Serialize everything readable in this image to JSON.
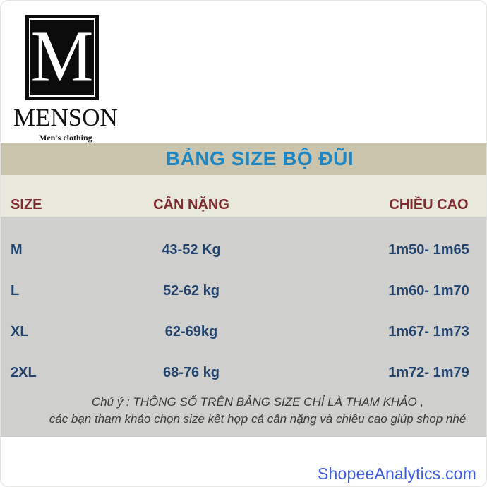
{
  "brand": {
    "monogram": "M",
    "name": "MENSON",
    "tagline": "Men's clothing"
  },
  "banner": {
    "title": "BẢNG SIZE BỘ ĐŨI"
  },
  "size_table": {
    "columns": [
      "SIZE",
      "CÂN NẶNG",
      "CHIỀU CAO"
    ],
    "rows": [
      {
        "size": "M",
        "weight": "43-52 Kg",
        "height": "1m50- 1m65"
      },
      {
        "size": "L",
        "weight": "52-62 kg",
        "height": "1m60- 1m70"
      },
      {
        "size": "XL",
        "weight": "62-69kg",
        "height": "1m67- 1m73"
      },
      {
        "size": "2XL",
        "weight": "68-76 kg",
        "height": "1m72- 1m79"
      }
    ]
  },
  "note": {
    "line1": "Chú ý : THÔNG SỐ TRÊN BẢNG SIZE CHỈ LÀ THAM KHẢO ,",
    "line2": "các bạn tham khảo chọn size  kết hợp cả cân nặng và chiều cao giúp shop nhé"
  },
  "footer": {
    "watermark": "ShopeeAnalytics.com"
  },
  "colors": {
    "banner_bg": "#cac4ac",
    "header_bg": "#e8e9db",
    "table_bg": "#cfcfcd",
    "title_blue": "#1d86c3",
    "header_maroon": "#7c2b2e",
    "row_navy": "#21436d",
    "note_text": "#3b3b33",
    "watermark_blue": "#3d5ce0",
    "logo_black": "#0c0c0c"
  }
}
